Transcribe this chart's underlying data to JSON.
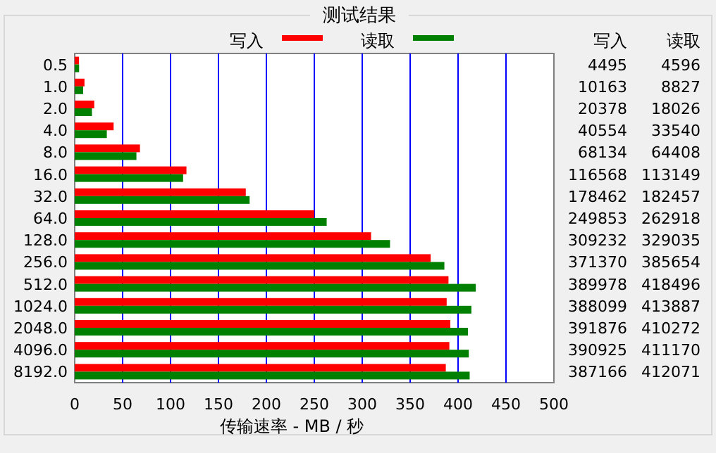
{
  "chart_data": [
    {
      "type": "bar",
      "orientation": "horizontal",
      "title": "测试结果",
      "xlabel": "传输速率 - MB / 秒",
      "categories": [
        "0.5",
        "1.0",
        "2.0",
        "4.0",
        "8.0",
        "16.0",
        "32.0",
        "64.0",
        "128.0",
        "256.0",
        "512.0",
        "1024.0",
        "2048.0",
        "4096.0",
        "8192.0"
      ],
      "series": [
        {
          "name": "写入",
          "color": "#ff0000",
          "values": [
            4.5,
            10.2,
            20.4,
            40.6,
            68.1,
            116.6,
            178.5,
            249.9,
            309.2,
            371.4,
            390.0,
            388.1,
            391.9,
            390.9,
            387.2
          ]
        },
        {
          "name": "读取",
          "color": "#008000",
          "values": [
            4.6,
            8.8,
            18.0,
            33.5,
            64.4,
            113.1,
            182.5,
            262.9,
            329.0,
            385.7,
            418.5,
            413.9,
            410.3,
            411.2,
            412.1
          ]
        }
      ],
      "xlim": [
        0,
        500
      ],
      "xticks": [
        0,
        50,
        100,
        150,
        200,
        250,
        300,
        350,
        400,
        450,
        500
      ],
      "grid": "x",
      "legend": "top"
    },
    {
      "type": "other",
      "annotations": [
        "写入",
        "读取",
        "4495",
        "4596",
        "10163",
        "8827",
        "20378",
        "18026",
        "40554",
        "33540",
        "68134",
        "64408",
        "116568",
        "113149",
        "178462",
        "182457",
        "249853",
        "262918",
        "309232",
        "329035",
        "371370",
        "385654",
        "389978",
        "418496",
        "388099",
        "413887",
        "391876",
        "410272",
        "390925",
        "411170",
        "387166",
        "412071"
      ]
    }
  ]
}
